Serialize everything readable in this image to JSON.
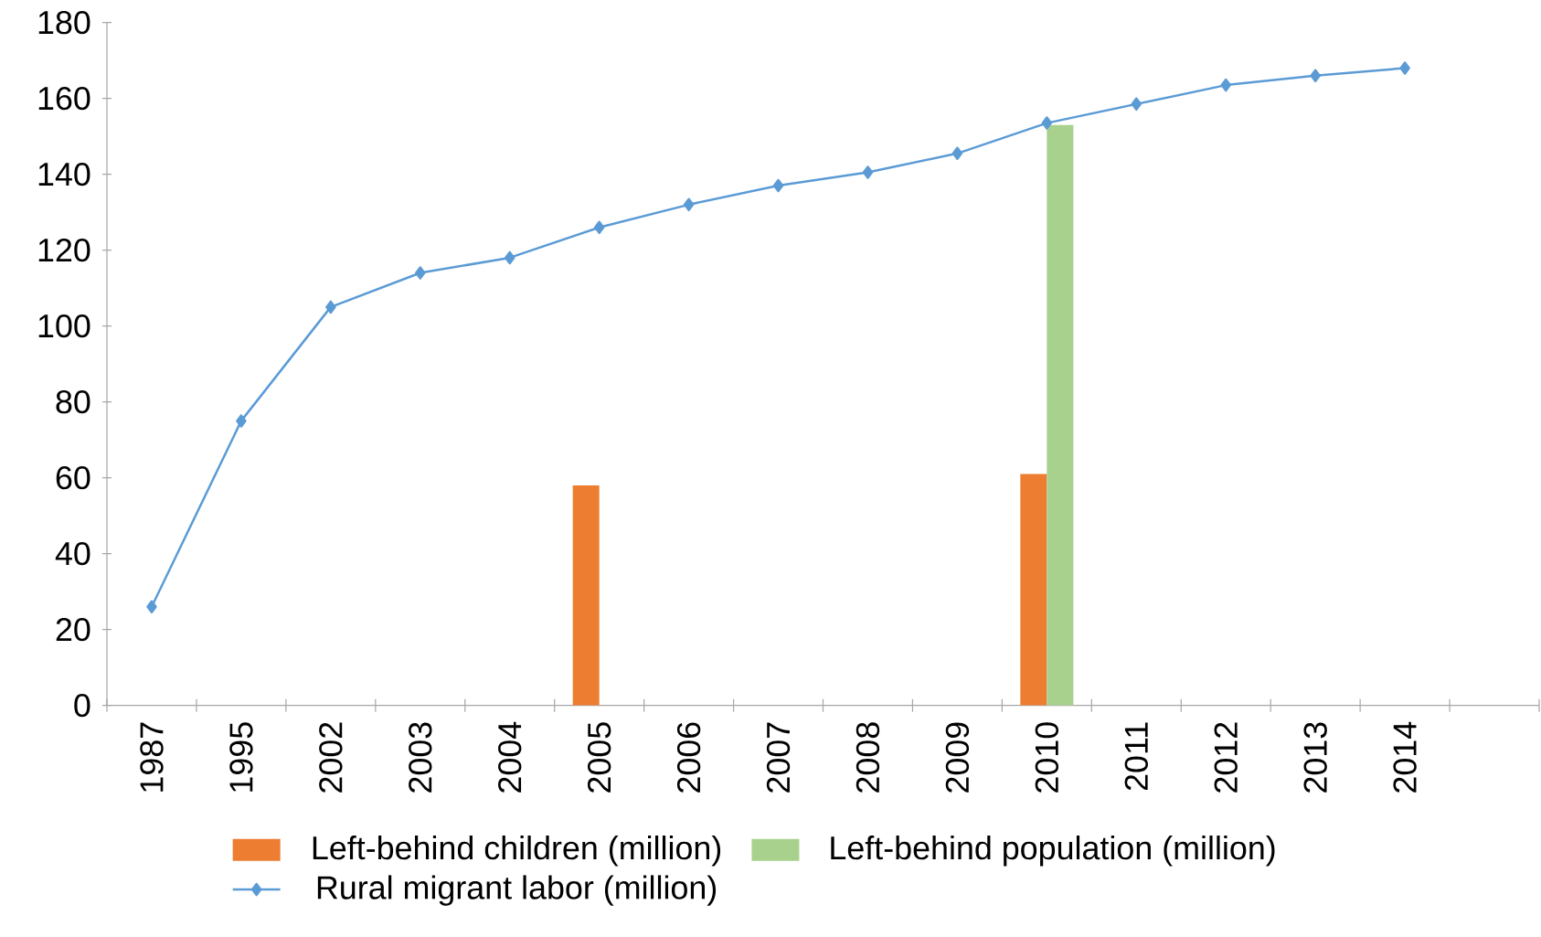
{
  "chart_data": {
    "type": "bar",
    "categories": [
      "1987",
      "1995",
      "2002",
      "2003",
      "2004",
      "2005",
      "2006",
      "2007",
      "2008",
      "2009",
      "2010",
      "2011",
      "2012",
      "2013",
      "2014",
      null
    ],
    "series": [
      {
        "name": "Left-behind children (million)",
        "color": "#ed7d31",
        "values": [
          null,
          null,
          null,
          null,
          null,
          58,
          null,
          null,
          null,
          null,
          61,
          null,
          null,
          null,
          null,
          null
        ]
      },
      {
        "name": "Left-behind population (million)",
        "color": "#a9d18e",
        "values": [
          null,
          null,
          null,
          null,
          null,
          null,
          null,
          null,
          null,
          null,
          153,
          null,
          null,
          null,
          null,
          null
        ]
      },
      {
        "name": "Rural migrant labor (million)",
        "type": "line",
        "color": "#5b9bd5",
        "marker": "diamond",
        "values": [
          26,
          75,
          105,
          114,
          118,
          126,
          132,
          137,
          140.5,
          145.5,
          153.5,
          158.5,
          163.5,
          166,
          168,
          null
        ]
      }
    ],
    "ylim": [
      0,
      180
    ],
    "yticks": [
      0,
      20,
      40,
      60,
      80,
      100,
      120,
      140,
      160,
      180
    ],
    "grid": false,
    "legend": "bottom"
  }
}
